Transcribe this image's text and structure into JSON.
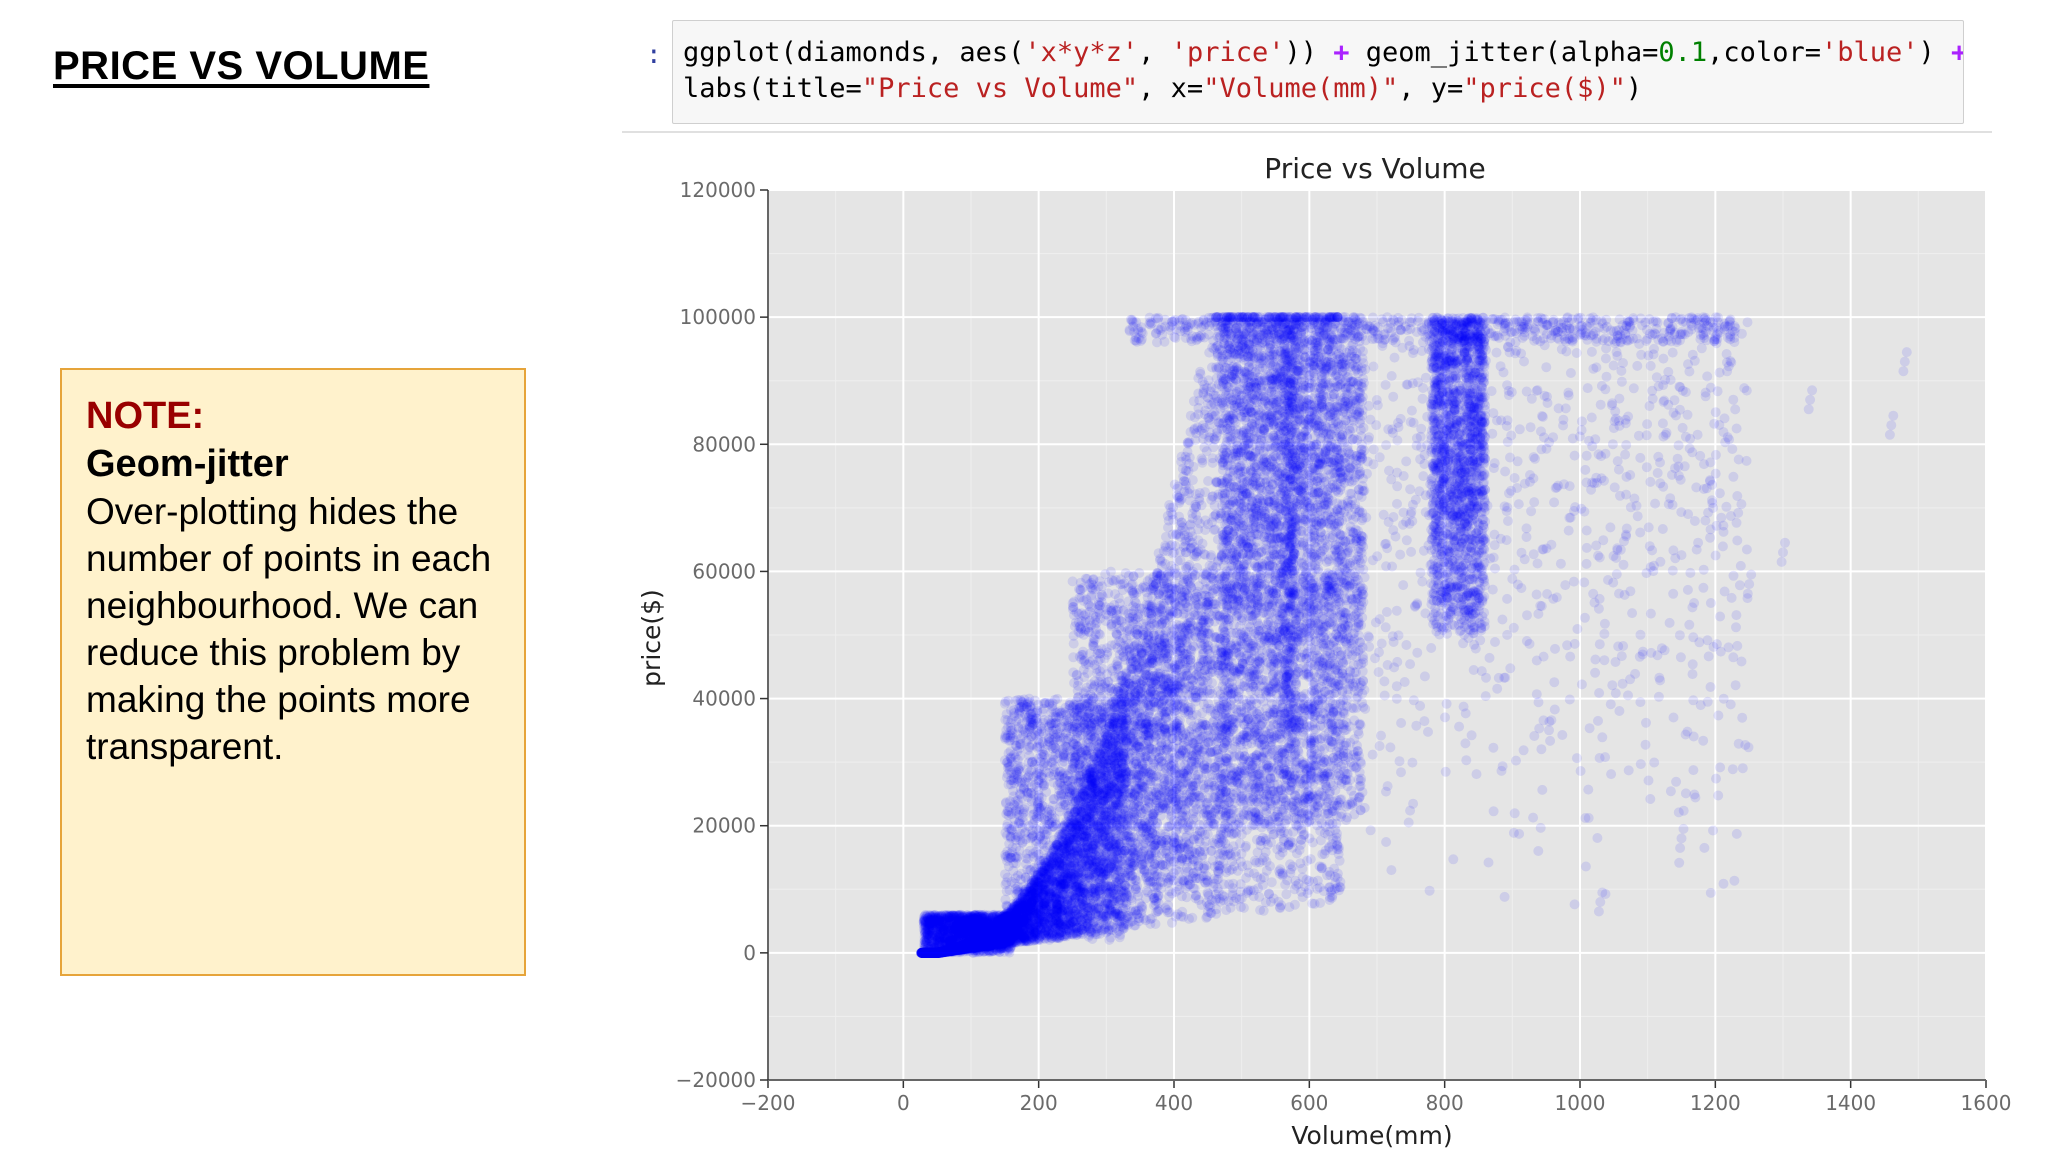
{
  "slide": {
    "title": "PRICE VS VOLUME"
  },
  "note": {
    "label": "NOTE:",
    "heading": "Geom-jitter",
    "body": "Over-plotting hides the number of points in each neighbourhood. We can reduce this problem by making the points more transparent."
  },
  "code_cell": {
    "prompt": ":",
    "line1": {
      "a": "ggplot(diamonds, aes(",
      "s1": "'x*y*z'",
      "b": ", ",
      "s2": "'price'",
      "c": ")) ",
      "op1": "+",
      "d": " geom_jitter(alpha=",
      "num": "0.1",
      "e": ",color=",
      "s3": "'blue'",
      "f": ") ",
      "op2": "+\\"
    },
    "line2": {
      "a": "labs(title=",
      "s1": "\"Price vs Volume\"",
      "b": ", x=",
      "s2": "\"Volume(mm)\"",
      "c": ", y=",
      "s3": "\"price($)\"",
      "d": ")"
    }
  },
  "chart_data": {
    "type": "scatter",
    "title": "Price vs Volume",
    "xlabel": "Volume(mm)",
    "ylabel": "price($)",
    "xlim": [
      -200,
      1600
    ],
    "ylim": [
      -20000,
      120000
    ],
    "x_ticks": [
      "−200",
      "0",
      "200",
      "400",
      "600",
      "800",
      "1000",
      "1200",
      "1400",
      "1600"
    ],
    "y_ticks": [
      "−20000",
      "0",
      "20000",
      "40000",
      "60000",
      "80000",
      "100000",
      "120000"
    ],
    "grid": true,
    "point_color": "#0000ff",
    "alpha": 0.1,
    "approximate_clusters": [
      {
        "x_range": [
          30,
          160
        ],
        "y_range": [
          0,
          6000
        ]
      },
      {
        "x_range": [
          150,
          330
        ],
        "y_range": [
          2000,
          40000
        ]
      },
      {
        "x_range": [
          250,
          480
        ],
        "y_range": [
          10000,
          60000
        ]
      },
      {
        "x_range": [
          470,
          580
        ],
        "y_range": [
          20000,
          100000
        ]
      },
      {
        "x_range": [
          560,
          680
        ],
        "y_range": [
          20000,
          100000
        ]
      },
      {
        "x_range": [
          780,
          860
        ],
        "y_range": [
          50000,
          100000
        ]
      }
    ],
    "outliers": [
      {
        "x": 1480,
        "y": 93000
      },
      {
        "x": 1460,
        "y": 83000
      },
      {
        "x": 1340,
        "y": 87000
      },
      {
        "x": 1250,
        "y": 58000
      },
      {
        "x": 1300,
        "y": 63000
      },
      {
        "x": 1150,
        "y": 18000
      },
      {
        "x": 1030,
        "y": 8000
      },
      {
        "x": 750,
        "y": 69000
      }
    ]
  }
}
